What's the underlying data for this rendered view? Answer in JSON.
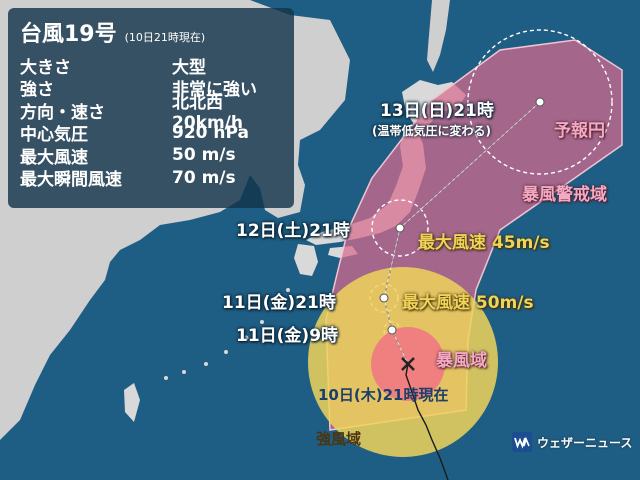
{
  "panel": {
    "title": "台風19号",
    "time_note": "(10日21時現在)",
    "rows": [
      {
        "key": "大きさ",
        "value": "大型"
      },
      {
        "key": "強さ",
        "value": "非常に強い"
      },
      {
        "key": "方向・速さ",
        "value": "北北西20km/h"
      },
      {
        "key": "中心気圧",
        "value": "920 hPa"
      },
      {
        "key": "最大風速",
        "value": "50 m/s"
      },
      {
        "key": "最大瞬間風速",
        "value": "70 m/s"
      }
    ]
  },
  "forecast_points": {
    "d13": "13日(日)21時",
    "d13_note": "(温帯低気圧に変わる)",
    "d12": "12日(土)21時",
    "d11_21": "11日(金)21時",
    "d11_9": "11日(金)9時",
    "now": "10日(木)21時現在"
  },
  "wind_labels": {
    "d12_max": "最大風速 45m/s",
    "d11_max": "最大風速 50m/s"
  },
  "area_labels": {
    "forecast_circle": "予報円",
    "storm_warning_area": "暴風警戒域",
    "storm_area": "暴風域",
    "strong_wind_area": "強風域"
  },
  "brand": {
    "name": "ウェザーニュース"
  },
  "colors": {
    "sea": "#1f5e84",
    "land": "#d9d9d9",
    "strong_wind": "#f0d35a",
    "storm": "#f07c82",
    "warning": "#d86b8e",
    "track": "#1a1a1a"
  }
}
